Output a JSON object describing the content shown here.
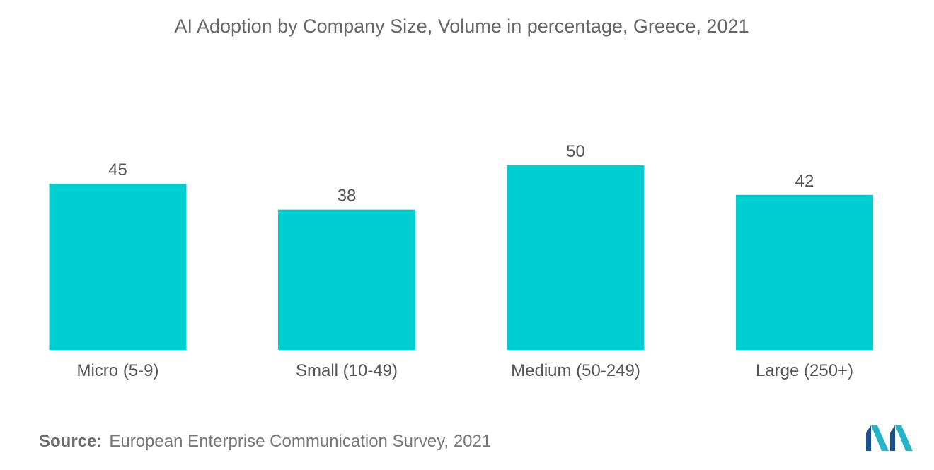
{
  "chart_data": {
    "type": "bar",
    "title": "AI Adoption by Company Size, Volume in percentage, Greece, 2021",
    "categories": [
      "Micro (5-9)",
      "Small (10-49)",
      "Medium (50-249)",
      "Large (250+)"
    ],
    "values": [
      45,
      38,
      50,
      42
    ],
    "xlabel": "",
    "ylabel": "",
    "grid": false,
    "data_labels": true,
    "bar_color": "#00CED1"
  },
  "source": {
    "label": "Source:",
    "text": "European Enterprise Communication Survey, 2021"
  },
  "logo": {
    "icon": "company-logo-icon",
    "colors": [
      "#1B4F8A",
      "#26B5C8"
    ]
  }
}
